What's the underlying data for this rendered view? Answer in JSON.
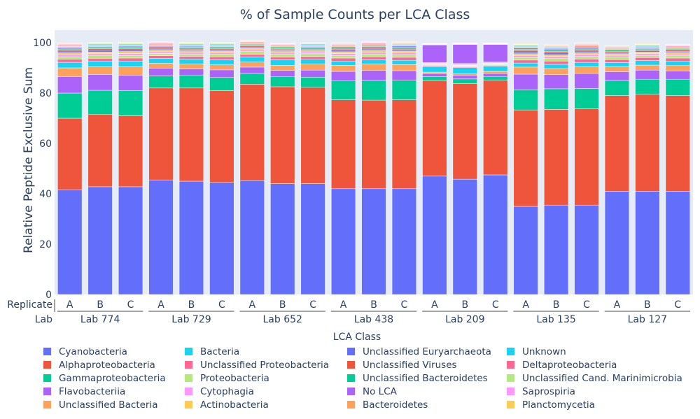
{
  "chart_data": {
    "type": "bar",
    "stacked": true,
    "title": "% of Sample Counts per LCA Class",
    "ylabel": "Relative Peptide Exclusive Sum",
    "ylim": [
      0,
      105
    ],
    "yticks": [
      0,
      20,
      40,
      60,
      80,
      100
    ],
    "grid": false,
    "x_levels": {
      "inner_label": "Replicate",
      "outer_label": "Lab",
      "groups": [
        {
          "label": "Lab 774",
          "replicates": [
            "A",
            "B",
            "C"
          ]
        },
        {
          "label": "Lab 729",
          "replicates": [
            "A",
            "B",
            "C"
          ]
        },
        {
          "label": "Lab 652",
          "replicates": [
            "A",
            "B",
            "C"
          ]
        },
        {
          "label": "Lab 438",
          "replicates": [
            "A",
            "B",
            "C"
          ]
        },
        {
          "label": "Lab 209",
          "replicates": [
            "A",
            "B",
            "C"
          ]
        },
        {
          "label": "Lab 135",
          "replicates": [
            "A",
            "B",
            "C"
          ]
        },
        {
          "label": "Lab 127",
          "replicates": [
            "A",
            "B",
            "C"
          ]
        }
      ]
    },
    "legend_title": "LCA Class",
    "legend_position": "bottom",
    "series": [
      {
        "name": "Cyanobacteria",
        "color": "#636efa",
        "values": [
          41.5,
          42.8,
          42.8,
          45.5,
          45.0,
          44.5,
          45.2,
          44.0,
          44.0,
          42.0,
          42.0,
          42.0,
          47.0,
          45.8,
          47.5,
          35.0,
          35.5,
          35.5,
          41.0,
          41.0,
          41.0
        ]
      },
      {
        "name": "Alphaproteobacteria",
        "color": "#ef553b",
        "values": [
          28.5,
          28.8,
          28.2,
          36.5,
          37.0,
          36.5,
          38.3,
          38.5,
          38.3,
          35.3,
          35.2,
          35.3,
          38.0,
          38.0,
          37.6,
          38.3,
          38.0,
          38.3,
          38.0,
          38.5,
          38.0
        ]
      },
      {
        "name": "Gammaproteobacteria",
        "color": "#00cc96",
        "values": [
          10.0,
          9.5,
          10.0,
          4.8,
          5.0,
          5.2,
          4.3,
          4.1,
          4.0,
          7.5,
          7.8,
          7.8,
          1.5,
          1.8,
          1.5,
          8.0,
          8.2,
          8.0,
          6.0,
          6.0,
          6.5
        ]
      },
      {
        "name": "Flavobacteriia",
        "color": "#ab63fa",
        "values": [
          6.5,
          6.3,
          6.0,
          3.0,
          2.6,
          3.0,
          2.5,
          2.4,
          2.8,
          3.8,
          4.0,
          3.8,
          1.2,
          1.4,
          1.2,
          6.2,
          5.6,
          6.0,
          3.5,
          3.6,
          3.2
        ]
      },
      {
        "name": "Unclassified Bacteria",
        "color": "#ffa15a",
        "values": [
          3.5,
          3.1,
          3.5,
          2.0,
          1.9,
          2.0,
          2.0,
          2.0,
          2.4,
          2.4,
          2.6,
          2.4,
          0.6,
          0.6,
          0.8,
          2.8,
          2.4,
          2.6,
          1.9,
          2.0,
          2.2
        ]
      },
      {
        "name": "Bacteria",
        "color": "#19d3f3",
        "values": [
          2.2,
          2.1,
          2.1,
          1.9,
          2.0,
          2.0,
          2.0,
          2.2,
          1.9,
          1.7,
          1.6,
          1.7,
          2.2,
          2.5,
          2.1,
          1.6,
          1.7,
          1.8,
          1.7,
          1.8,
          1.8
        ]
      },
      {
        "name": "Unclassified Proteobacteria",
        "color": "#ff6692",
        "values": [
          1.2,
          1.2,
          1.3,
          1.1,
          1.1,
          1.2,
          1.1,
          1.1,
          1.1,
          1.2,
          1.2,
          1.2,
          0.3,
          0.3,
          0.3,
          1.2,
          1.3,
          1.3,
          1.2,
          1.2,
          1.2
        ]
      },
      {
        "name": "Proteobacteria",
        "color": "#b6e880",
        "values": [
          1.0,
          1.0,
          1.0,
          0.9,
          0.9,
          1.0,
          1.1,
          1.2,
          1.1,
          1.0,
          1.0,
          1.0,
          0.3,
          0.3,
          0.3,
          1.0,
          1.0,
          1.0,
          1.0,
          0.9,
          0.9
        ]
      },
      {
        "name": "Cytophagia",
        "color": "#ff97ff",
        "values": [
          0.8,
          0.8,
          0.8,
          0.7,
          0.7,
          0.7,
          0.7,
          0.7,
          0.7,
          0.8,
          0.8,
          0.8,
          0.2,
          0.2,
          0.2,
          0.8,
          0.8,
          0.8,
          0.7,
          0.7,
          0.7
        ]
      },
      {
        "name": "Actinobacteria",
        "color": "#fecb52",
        "values": [
          0.8,
          0.7,
          0.8,
          0.6,
          0.6,
          0.6,
          0.6,
          0.6,
          0.6,
          0.7,
          0.7,
          0.7,
          0.2,
          0.2,
          0.2,
          0.7,
          0.7,
          0.7,
          0.6,
          0.6,
          0.6
        ]
      },
      {
        "name": "Unclassified Euryarchaeota",
        "color": "#636efa",
        "values": [
          0.7,
          0.7,
          0.6,
          0.5,
          0.5,
          0.5,
          0.5,
          0.5,
          0.5,
          0.6,
          0.6,
          0.6,
          0.2,
          0.2,
          0.2,
          0.7,
          0.7,
          0.7,
          0.5,
          0.5,
          0.5
        ]
      },
      {
        "name": "Unclassified Viruses",
        "color": "#ef553b",
        "values": [
          0.6,
          0.6,
          0.6,
          0.5,
          0.5,
          0.5,
          0.4,
          0.4,
          0.4,
          0.5,
          0.5,
          0.5,
          0.2,
          0.2,
          0.2,
          0.6,
          0.6,
          0.6,
          0.5,
          0.5,
          0.5
        ]
      },
      {
        "name": "Unclassified Bacteroidetes",
        "color": "#00cc96",
        "values": [
          0.5,
          0.5,
          0.5,
          0.4,
          0.4,
          0.4,
          0.4,
          0.4,
          0.4,
          0.5,
          0.5,
          0.5,
          0.2,
          0.2,
          0.2,
          0.5,
          0.5,
          0.5,
          0.4,
          0.4,
          0.4
        ]
      },
      {
        "name": "No LCA",
        "color": "#ab63fa",
        "values": [
          0.4,
          0.4,
          0.4,
          0.4,
          0.4,
          0.4,
          0.3,
          0.3,
          0.3,
          0.4,
          0.4,
          0.4,
          7.0,
          7.6,
          7.0,
          0.5,
          0.5,
          0.5,
          0.3,
          0.3,
          0.3
        ]
      },
      {
        "name": "Bacteroidetes",
        "color": "#ffa15a",
        "values": [
          0.3,
          0.3,
          0.3,
          0.3,
          0.3,
          0.3,
          0.3,
          0.3,
          0.3,
          0.3,
          0.3,
          0.3,
          0.1,
          0.1,
          0.1,
          0.4,
          0.4,
          0.4,
          0.3,
          0.3,
          0.3
        ]
      },
      {
        "name": "Unknown",
        "color": "#19d3f3",
        "values": [
          0.3,
          0.3,
          0.3,
          0.3,
          0.3,
          0.3,
          0.3,
          0.3,
          0.3,
          0.3,
          0.3,
          0.3,
          0.1,
          0.1,
          0.1,
          0.3,
          0.3,
          0.3,
          0.3,
          0.3,
          0.3
        ]
      },
      {
        "name": "Deltaproteobacteria",
        "color": "#ff6692",
        "values": [
          0.3,
          0.3,
          0.3,
          0.3,
          0.3,
          0.3,
          0.3,
          0.3,
          0.3,
          0.3,
          0.3,
          0.3,
          0.1,
          0.1,
          0.1,
          0.3,
          0.3,
          0.3,
          0.3,
          0.3,
          0.3
        ]
      },
      {
        "name": "Unclassified Cand. Marinimicrobia",
        "color": "#b6e880",
        "values": [
          0.3,
          0.3,
          0.3,
          0.3,
          0.3,
          0.3,
          0.2,
          0.2,
          0.2,
          0.3,
          0.3,
          0.3,
          0.1,
          0.1,
          0.1,
          0.3,
          0.3,
          0.3,
          0.3,
          0.3,
          0.3
        ]
      },
      {
        "name": "Saprospiria",
        "color": "#ff97ff",
        "values": [
          0.2,
          0.2,
          0.2,
          0.2,
          0.2,
          0.2,
          0.2,
          0.2,
          0.2,
          0.2,
          0.2,
          0.2,
          0.1,
          0.1,
          0.1,
          0.2,
          0.2,
          0.2,
          0.2,
          0.2,
          0.2
        ]
      },
      {
        "name": "Planctomycetia",
        "color": "#fecb52",
        "values": [
          0.2,
          0.2,
          0.2,
          0.2,
          0.2,
          0.2,
          0.2,
          0.2,
          0.2,
          0.2,
          0.2,
          0.2,
          0.1,
          0.1,
          0.1,
          0.2,
          0.2,
          0.2,
          0.2,
          0.2,
          0.2
        ]
      }
    ]
  },
  "colors": {
    "plot_background": "#e5ecf6",
    "axis_text": "#2a3f5f"
  }
}
